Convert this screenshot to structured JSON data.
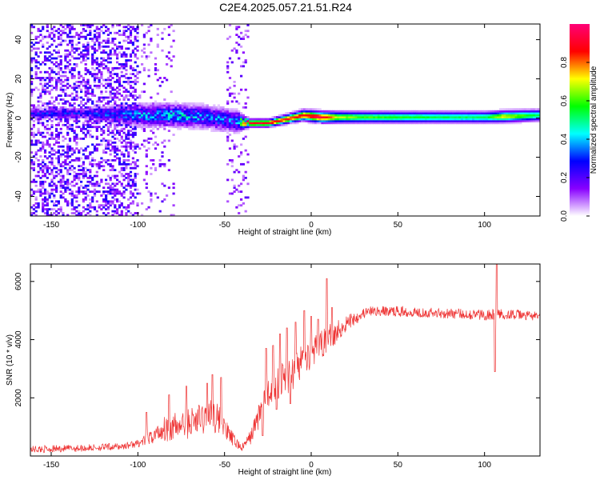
{
  "title": "C2E4.2025.057.21.51.R24",
  "chart_data": [
    {
      "type": "heatmap",
      "xlabel": "Height of straight line (km)",
      "ylabel": "Frequency (Hz)",
      "xlim": [
        -162,
        132
      ],
      "ylim": [
        -50,
        48
      ],
      "xticks": [
        -150,
        -100,
        -50,
        0,
        50,
        100
      ],
      "yticks": [
        -40,
        -20,
        0,
        20,
        40
      ],
      "colorbar": {
        "label": "Normalized spectral amplitude",
        "range": [
          0,
          1
        ],
        "ticks": [
          "0.0",
          "0.2",
          "0.4",
          "0.6",
          "0.8"
        ],
        "tick_values": [
          0,
          0.2,
          0.4,
          0.6,
          0.8
        ],
        "colors": [
          "#ffffff",
          "#8800ff",
          "#0000ff",
          "#00ffff",
          "#00ff00",
          "#ffff00",
          "#ff0000",
          "#ff0077"
        ]
      },
      "trace_center_hz": [
        [
          -130,
          2
        ],
        [
          -100,
          1
        ],
        [
          -80,
          1
        ],
        [
          -60,
          0
        ],
        [
          -45,
          -2
        ],
        [
          -36,
          -3
        ],
        [
          -25,
          -3
        ],
        [
          -15,
          -1
        ],
        [
          -5,
          1
        ],
        [
          5,
          0
        ],
        [
          20,
          0
        ],
        [
          50,
          0
        ],
        [
          80,
          0
        ],
        [
          100,
          0
        ],
        [
          130,
          1
        ]
      ],
      "trace_halfwidth_hz": [
        [
          -130,
          3
        ],
        [
          -100,
          6
        ],
        [
          -80,
          6
        ],
        [
          -60,
          6
        ],
        [
          -45,
          6
        ],
        [
          -36,
          2
        ],
        [
          -25,
          2
        ],
        [
          0,
          3
        ],
        [
          50,
          3
        ],
        [
          100,
          3
        ],
        [
          130,
          3
        ]
      ],
      "trace_amplitude": [
        [
          -130,
          0.25
        ],
        [
          -100,
          0.35
        ],
        [
          -80,
          0.38
        ],
        [
          -60,
          0.35
        ],
        [
          -45,
          0.3
        ],
        [
          -36,
          0.95
        ],
        [
          -25,
          0.95
        ],
        [
          -10,
          0.9
        ],
        [
          0,
          0.95
        ],
        [
          5,
          1.0
        ],
        [
          15,
          0.7
        ],
        [
          30,
          0.62
        ],
        [
          50,
          0.6
        ],
        [
          80,
          0.55
        ],
        [
          100,
          0.55
        ],
        [
          110,
          0.75
        ],
        [
          130,
          0.55
        ]
      ],
      "noise_regions": [
        {
          "x": [
            -162,
            -100
          ],
          "density": "high"
        },
        {
          "x": [
            -100,
            -80
          ],
          "density": "medium"
        },
        {
          "x": [
            -50,
            -37
          ],
          "density": "medium"
        }
      ]
    },
    {
      "type": "line",
      "xlabel": "Height of straight line (km)",
      "ylabel": "SNR (10 * v/v)",
      "xlim": [
        -162,
        132
      ],
      "ylim": [
        0,
        6600
      ],
      "xticks": [
        -150,
        -100,
        -50,
        0,
        50,
        100
      ],
      "yticks": [
        2000,
        4000,
        6000
      ],
      "series": [
        {
          "color": "#ee3333",
          "envelope": [
            [
              -162,
              100,
              350
            ],
            [
              -130,
              150,
              400
            ],
            [
              -110,
              200,
              450
            ],
            [
              -100,
              300,
              550
            ],
            [
              -92,
              400,
              900
            ],
            [
              -85,
              500,
              1400
            ],
            [
              -78,
              500,
              1500
            ],
            [
              -70,
              600,
              1700
            ],
            [
              -62,
              700,
              1900
            ],
            [
              -55,
              800,
              2000
            ],
            [
              -50,
              600,
              1300
            ],
            [
              -45,
              300,
              800
            ],
            [
              -40,
              150,
              400
            ],
            [
              -35,
              400,
              900
            ],
            [
              -32,
              700,
              1500
            ],
            [
              -28,
              1200,
              2500
            ],
            [
              -22,
              1800,
              3000
            ],
            [
              -15,
              2000,
              3400
            ],
            [
              -10,
              2300,
              3600
            ],
            [
              -5,
              2700,
              3800
            ],
            [
              0,
              3000,
              4000
            ],
            [
              5,
              3300,
              4300
            ],
            [
              10,
              3600,
              4500
            ],
            [
              15,
              3900,
              4700
            ],
            [
              20,
              4200,
              4900
            ],
            [
              25,
              4500,
              5000
            ],
            [
              30,
              4700,
              5100
            ],
            [
              35,
              4800,
              5150
            ],
            [
              50,
              4800,
              5150
            ],
            [
              70,
              4750,
              5100
            ],
            [
              90,
              4700,
              5050
            ],
            [
              105,
              4650,
              5050
            ],
            [
              112,
              4700,
              5050
            ],
            [
              132,
              4650,
              4950
            ]
          ],
          "spikes": [
            [
              -95,
              1500
            ],
            [
              -82,
              2100
            ],
            [
              -72,
              2400
            ],
            [
              -60,
              2500
            ],
            [
              -57,
              2800
            ],
            [
              -52,
              2700
            ],
            [
              -26,
              3700
            ],
            [
              -22,
              3800
            ],
            [
              -18,
              4200
            ],
            [
              -14,
              4400
            ],
            [
              -9,
              4600
            ],
            [
              -4,
              5000
            ],
            [
              0,
              4800
            ],
            [
              4,
              4700
            ],
            [
              9,
              6100
            ],
            [
              12,
              5100
            ],
            [
              106,
              5600
            ],
            [
              107,
              6650
            ]
          ],
          "dips": [
            [
              -28,
              700
            ],
            [
              -20,
              1600
            ],
            [
              -12,
              1800
            ],
            [
              106,
              2900
            ]
          ]
        }
      ]
    }
  ]
}
